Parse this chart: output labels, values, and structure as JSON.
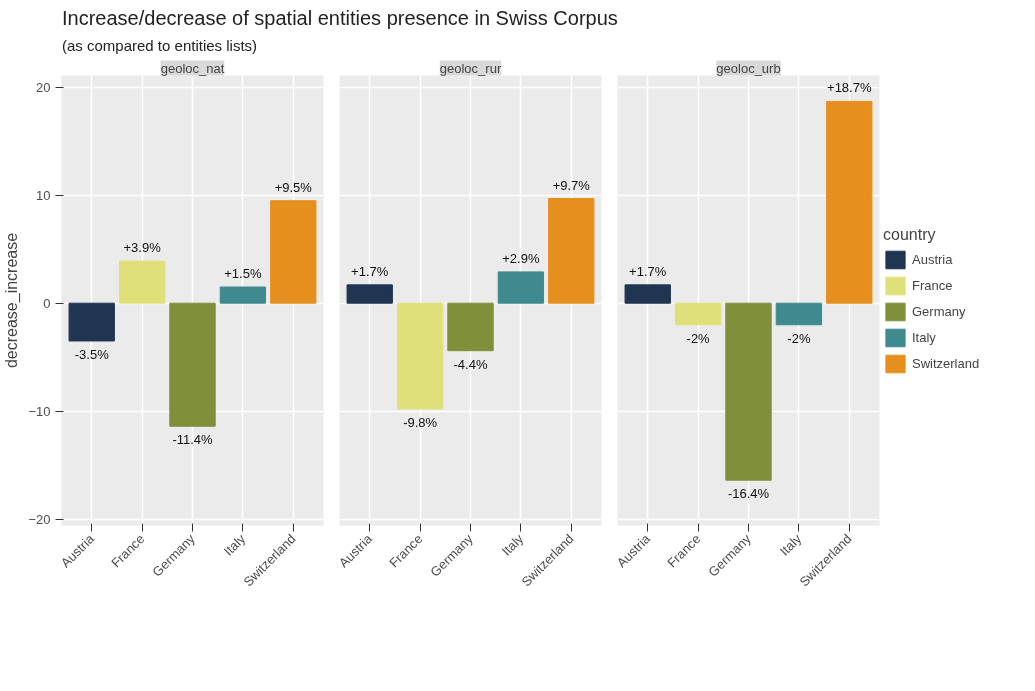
{
  "chart_data": [
    {
      "type": "bar",
      "title": "geoloc_nat",
      "annotations": [
        "Increase/decrease of spatial entities presence in Swiss Corpus",
        "(as compared to entities lists)"
      ],
      "ylabel": "decrease_increase",
      "categories": [
        "Austria",
        "France",
        "Germany",
        "Italy",
        "Switzerland"
      ],
      "values": [
        -3.5,
        3.9,
        -11.4,
        1.5,
        9.5
      ],
      "value_labels": [
        "-3.5%",
        "+3.9%",
        "-11.4%",
        "+1.5%",
        "+9.5%"
      ],
      "colors": [
        "#1f3552",
        "#e0e07a",
        "#7f8f3a",
        "#3f8a8e",
        "#e5901e"
      ],
      "ylim": [
        -20.6,
        21.1
      ],
      "yticks": [
        -20,
        -10,
        0,
        10,
        20
      ],
      "grid": true
    },
    {
      "type": "bar",
      "title": "geoloc_rur",
      "categories": [
        "Austria",
        "France",
        "Germany",
        "Italy",
        "Switzerland"
      ],
      "values": [
        1.7,
        -9.8,
        -4.4,
        2.9,
        9.7
      ],
      "value_labels": [
        "+1.7%",
        "-9.8%",
        "-4.4%",
        "+2.9%",
        "+9.7%"
      ],
      "colors": [
        "#1f3552",
        "#e0e07a",
        "#7f8f3a",
        "#3f8a8e",
        "#e5901e"
      ],
      "ylim": [
        -20.6,
        21.1
      ],
      "yticks": [
        -20,
        -10,
        0,
        10,
        20
      ],
      "grid": true,
      "tick_labels": "x"
    },
    {
      "type": "bar",
      "title": "geoloc_urb",
      "legend_title": "country",
      "legend": "right",
      "categories": [
        "Austria",
        "France",
        "Germany",
        "Italy",
        "Switzerland"
      ],
      "series": [
        {
          "name": "Austria",
          "color": "#1f3552",
          "values": [
            1.7,
            null,
            null,
            null,
            null
          ],
          "value_labels": [
            "+1.7%",
            null,
            null,
            null,
            null
          ]
        },
        {
          "name": "France",
          "color": "#e0e07a",
          "values": [
            null,
            -2,
            null,
            null,
            null
          ],
          "value_labels": [
            null,
            "-2%",
            null,
            null,
            null
          ]
        },
        {
          "name": "Germany",
          "color": "#7f8f3a",
          "values": [
            null,
            null,
            -16.4,
            null,
            null
          ],
          "value_labels": [
            null,
            null,
            "-16.4%",
            null,
            null
          ]
        },
        {
          "name": "Italy",
          "color": "#3f8a8e",
          "values": [
            null,
            null,
            null,
            -2,
            null
          ],
          "value_labels": [
            null,
            null,
            null,
            "-2%",
            null
          ]
        },
        {
          "name": "Switzerland",
          "color": "#e5901e",
          "values": [
            null,
            null,
            null,
            null,
            18.7
          ],
          "value_labels": [
            null,
            null,
            null,
            null,
            "+18.7%"
          ]
        }
      ],
      "ylim": [
        -20.6,
        21.1
      ],
      "yticks": [
        -20,
        -10,
        0,
        10,
        20
      ],
      "grid": true,
      "tick_labels": "x"
    }
  ]
}
